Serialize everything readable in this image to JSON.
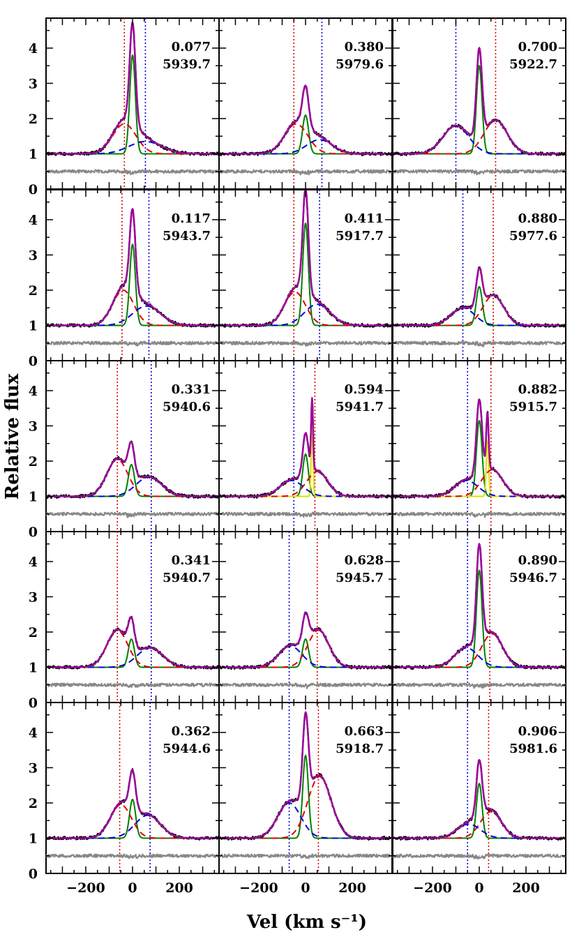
{
  "chart_data": {
    "type": "line",
    "layout": "5 rows x 3 columns grid of panels",
    "xlabel": "Vel (km s⁻¹)",
    "ylabel": "Relative flux",
    "xlim": [
      -370,
      370
    ],
    "ylim": [
      0,
      4.85
    ],
    "xticks": [
      -200,
      0,
      200
    ],
    "xtick_labels": [
      "−200",
      "0",
      "200"
    ],
    "yticks": [
      0,
      1,
      2,
      3,
      4
    ],
    "ytick_labels": [
      "0",
      "1",
      "2",
      "3",
      "4"
    ],
    "series": [
      {
        "name": "Observed spectrum",
        "color": "#000000"
      },
      {
        "name": "Total fit",
        "color": "#a000a0"
      },
      {
        "name": "Narrow component",
        "color": "#008000"
      },
      {
        "name": "Broad red-dashed component",
        "color": "#dd0000"
      },
      {
        "name": "Broad blue-dashed component",
        "color": "#0000dd"
      },
      {
        "name": "Extra narrow component",
        "color": "#dddd00"
      },
      {
        "name": "Residuals",
        "color": "#888888"
      }
    ],
    "panels": [
      {
        "phase": "0.077",
        "hjd": "5939.7",
        "red_line": -35,
        "blue_line": 55,
        "narrow": {
          "amp": 2.8,
          "c": 0,
          "w": 12
        },
        "red": {
          "amp": 0.85,
          "c": -35,
          "w": 50
        },
        "blue": {
          "amp": 0.35,
          "c": 55,
          "w": 70
        },
        "yellow": null
      },
      {
        "phase": "0.380",
        "hjd": "5979.6",
        "red_line": -50,
        "blue_line": 70,
        "narrow": {
          "amp": 1.1,
          "c": 0,
          "w": 13
        },
        "red": {
          "amp": 0.85,
          "c": -40,
          "w": 50
        },
        "blue": {
          "amp": 0.4,
          "c": 60,
          "w": 55
        },
        "yellow": null
      },
      {
        "phase": "0.700",
        "hjd": "5922.7",
        "red_line": 70,
        "blue_line": -100,
        "narrow": {
          "amp": 2.5,
          "c": 0,
          "w": 12
        },
        "red": {
          "amp": 0.95,
          "c": 70,
          "w": 50
        },
        "blue": {
          "amp": 0.8,
          "c": -100,
          "w": 55
        },
        "yellow": null
      },
      {
        "phase": "0.117",
        "hjd": "5943.7",
        "red_line": -45,
        "blue_line": 70,
        "narrow": {
          "amp": 2.3,
          "c": 0,
          "w": 12
        },
        "red": {
          "amp": 1.0,
          "c": -40,
          "w": 45
        },
        "blue": {
          "amp": 0.55,
          "c": 60,
          "w": 60
        },
        "yellow": null
      },
      {
        "phase": "0.411",
        "hjd": "5917.7",
        "red_line": -50,
        "blue_line": 60,
        "narrow": {
          "amp": 2.9,
          "c": 0,
          "w": 12
        },
        "red": {
          "amp": 0.95,
          "c": -45,
          "w": 45
        },
        "blue": {
          "amp": 0.6,
          "c": 50,
          "w": 55
        },
        "yellow": null
      },
      {
        "phase": "0.880",
        "hjd": "5977.6",
        "red_line": 60,
        "blue_line": -70,
        "narrow": {
          "amp": 1.1,
          "c": 0,
          "w": 13
        },
        "red": {
          "amp": 0.85,
          "c": 60,
          "w": 45
        },
        "blue": {
          "amp": 0.5,
          "c": -70,
          "w": 50
        },
        "yellow": null
      },
      {
        "phase": "0.331",
        "hjd": "5940.6",
        "red_line": -65,
        "blue_line": 80,
        "narrow": {
          "amp": 0.9,
          "c": -5,
          "w": 13
        },
        "red": {
          "amp": 1.05,
          "c": -65,
          "w": 45
        },
        "blue": {
          "amp": 0.55,
          "c": 70,
          "w": 55
        },
        "yellow": null
      },
      {
        "phase": "0.594",
        "hjd": "5941.7",
        "red_line": 40,
        "blue_line": -50,
        "narrow": {
          "amp": 1.2,
          "c": 0,
          "w": 12
        },
        "red": {
          "amp": 0.7,
          "c": 50,
          "w": 45
        },
        "blue": {
          "amp": 0.45,
          "c": -60,
          "w": 50
        },
        "yellow": {
          "amp": 2.0,
          "c": 28,
          "w": 4
        }
      },
      {
        "phase": "0.882",
        "hjd": "5915.7",
        "red_line": 50,
        "blue_line": -50,
        "narrow": {
          "amp": 2.15,
          "c": 0,
          "w": 12
        },
        "red": {
          "amp": 0.75,
          "c": 55,
          "w": 45
        },
        "blue": {
          "amp": 0.45,
          "c": -55,
          "w": 50
        },
        "yellow": {
          "amp": 1.6,
          "c": 35,
          "w": 5
        }
      },
      {
        "phase": "0.341",
        "hjd": "5940.7",
        "red_line": -65,
        "blue_line": 80,
        "narrow": {
          "amp": 0.8,
          "c": -5,
          "w": 13
        },
        "red": {
          "amp": 1.05,
          "c": -65,
          "w": 45
        },
        "blue": {
          "amp": 0.55,
          "c": 75,
          "w": 55
        },
        "yellow": null
      },
      {
        "phase": "0.628",
        "hjd": "5945.7",
        "red_line": 50,
        "blue_line": -70,
        "narrow": {
          "amp": 0.8,
          "c": 0,
          "w": 13
        },
        "red": {
          "amp": 1.05,
          "c": 55,
          "w": 45
        },
        "blue": {
          "amp": 0.6,
          "c": -65,
          "w": 50
        },
        "yellow": null
      },
      {
        "phase": "0.890",
        "hjd": "5946.7",
        "red_line": 45,
        "blue_line": -50,
        "narrow": {
          "amp": 2.75,
          "c": 0,
          "w": 12
        },
        "red": {
          "amp": 0.95,
          "c": 55,
          "w": 45
        },
        "blue": {
          "amp": 0.55,
          "c": -55,
          "w": 50
        },
        "yellow": null
      },
      {
        "phase": "0.362",
        "hjd": "5944.6",
        "red_line": -55,
        "blue_line": 75,
        "narrow": {
          "amp": 1.1,
          "c": 0,
          "w": 13
        },
        "red": {
          "amp": 0.95,
          "c": -50,
          "w": 45
        },
        "blue": {
          "amp": 0.65,
          "c": 65,
          "w": 55
        },
        "yellow": null
      },
      {
        "phase": "0.663",
        "hjd": "5918.7",
        "red_line": 55,
        "blue_line": -70,
        "narrow": {
          "amp": 2.35,
          "c": 0,
          "w": 12
        },
        "red": {
          "amp": 1.75,
          "c": 60,
          "w": 50
        },
        "blue": {
          "amp": 1.0,
          "c": -70,
          "w": 50
        },
        "yellow": null
      },
      {
        "phase": "0.906",
        "hjd": "5981.6",
        "red_line": 40,
        "blue_line": -50,
        "narrow": {
          "amp": 1.55,
          "c": 0,
          "w": 12
        },
        "red": {
          "amp": 0.75,
          "c": 50,
          "w": 45
        },
        "blue": {
          "amp": 0.4,
          "c": -45,
          "w": 50
        },
        "yellow": null
      }
    ]
  }
}
